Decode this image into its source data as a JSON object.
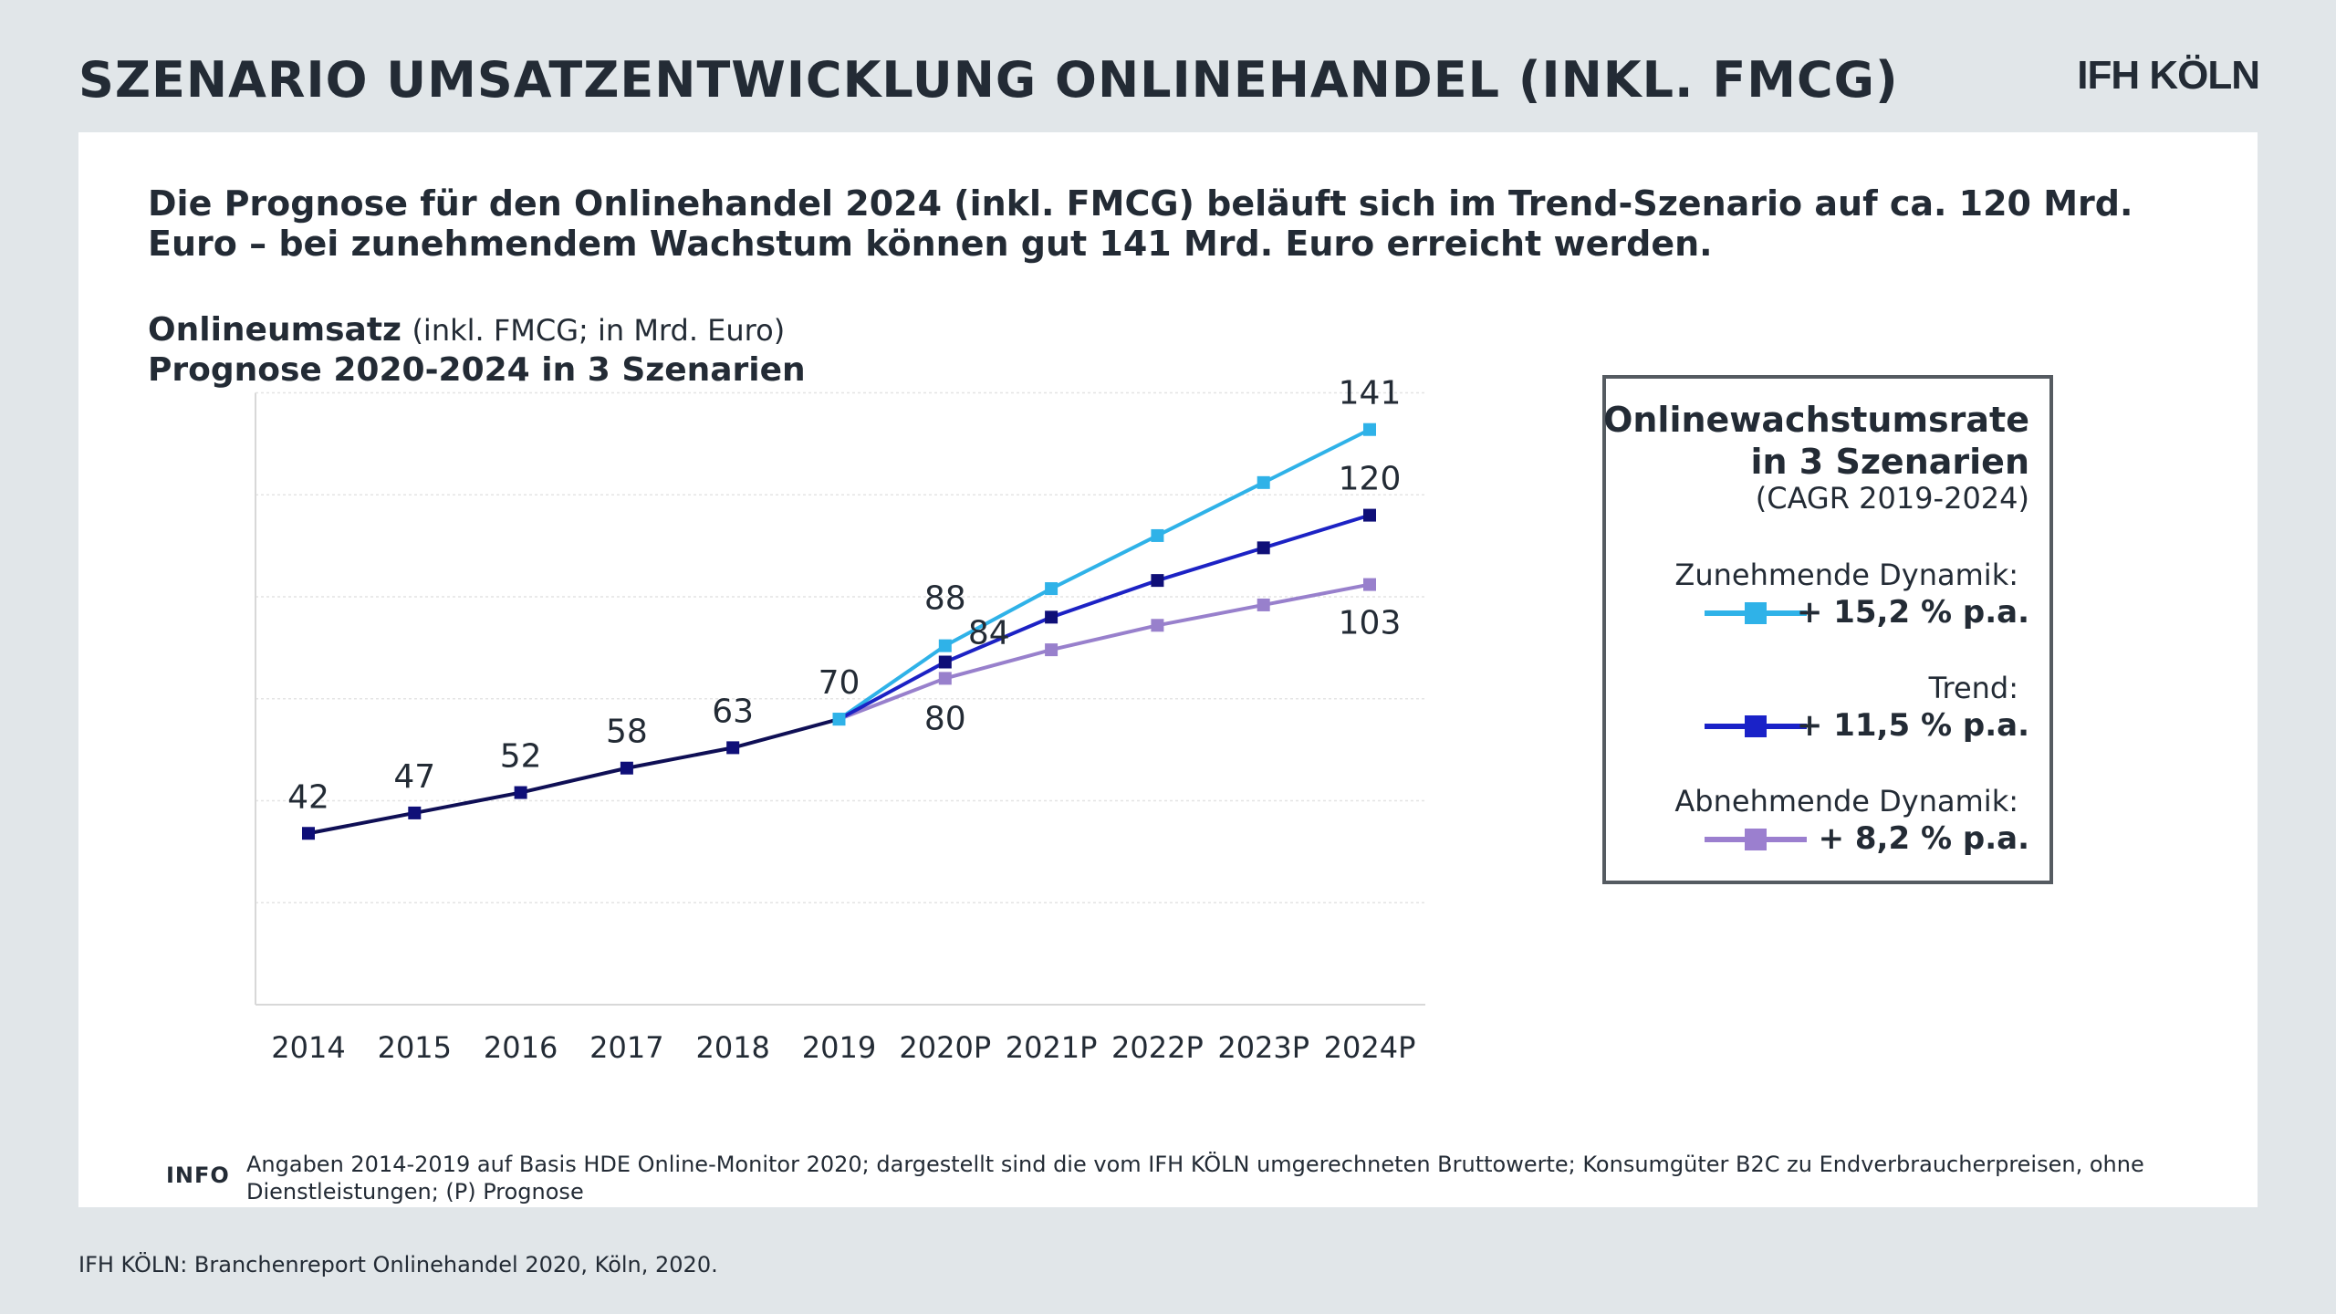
{
  "page": {
    "title": "SZENARIO UMSATZENTWICKLUNG ONLINEHANDEL (INKL. FMCG)",
    "logo": "IFH KÖLN",
    "headline": "Die Prognose für den Onlinehandel 2024 (inkl. FMCG) beläuft sich im Trend-Szenario auf ca. 120 Mrd. Euro – bei zunehmendem Wachstum können gut 141 Mrd. Euro erreicht werden.",
    "chart_heading_bold": "Onlineumsatz",
    "chart_heading_light": "(inkl. FMCG; in Mrd. Euro)",
    "chart_subheading": "Prognose 2020-2024 in 3 Szenarien",
    "info_tag": "INFO",
    "info_text": "Angaben 2014-2019 auf Basis HDE Online-Monitor 2020; dargestellt sind die vom IFH KÖLN umgerechneten Bruttowerte; Konsumgüter B2C zu Endverbraucherpreisen, ohne Dienstleistungen; (P) Prognose",
    "source": "IFH KÖLN: Branchenreport Onlinehandel 2020, Köln, 2020."
  },
  "legend": {
    "title_line1": "Onlinewachstumsrate",
    "title_line2": "in 3 Szenarien",
    "subtitle": "(CAGR 2019-2024)",
    "entries": [
      {
        "label": "Zunehmende Dynamik:",
        "value": "+ 15,2 % p.a.",
        "color": "#2fb2e8"
      },
      {
        "label": "Trend:",
        "value": "+ 11,5 % p.a.",
        "color": "#1a22c8"
      },
      {
        "label": "Abnehmende Dynamik:",
        "value": "+ 8,2 % p.a.",
        "color": "#9b7fcf"
      }
    ]
  },
  "chart_data": {
    "type": "line",
    "categories": [
      "2014",
      "2015",
      "2016",
      "2017",
      "2018",
      "2019",
      "2020P",
      "2021P",
      "2022P",
      "2023P",
      "2024P"
    ],
    "ylim": [
      0,
      150
    ],
    "grid": true,
    "series": [
      {
        "name": "Zunehmende Dynamik",
        "color": "#2fb2e8",
        "values": [
          null,
          null,
          null,
          null,
          null,
          70,
          88,
          102,
          115,
          128,
          141
        ]
      },
      {
        "name": "Trend",
        "color": "#0f0f78",
        "values": [
          42,
          47,
          52,
          58,
          63,
          70,
          84,
          95,
          104,
          112,
          120
        ]
      },
      {
        "name": "Abnehmende Dynamik",
        "color": "#9880cc",
        "values": [
          null,
          null,
          null,
          null,
          null,
          70,
          80,
          87,
          93,
          98,
          103
        ]
      }
    ],
    "data_labels": [
      {
        "category": "2014",
        "series": "Trend",
        "text": "42"
      },
      {
        "category": "2015",
        "series": "Trend",
        "text": "47"
      },
      {
        "category": "2016",
        "series": "Trend",
        "text": "52"
      },
      {
        "category": "2017",
        "series": "Trend",
        "text": "58"
      },
      {
        "category": "2018",
        "series": "Trend",
        "text": "63"
      },
      {
        "category": "2019",
        "series": "Trend",
        "text": "70"
      },
      {
        "category": "2020P",
        "series": "Zunehmende Dynamik",
        "text": "88"
      },
      {
        "category": "2020P",
        "series": "Trend",
        "text": "84"
      },
      {
        "category": "2020P",
        "series": "Abnehmende Dynamik",
        "text": "80"
      },
      {
        "category": "2024P",
        "series": "Zunehmende Dynamik",
        "text": "141"
      },
      {
        "category": "2024P",
        "series": "Trend",
        "text": "120"
      },
      {
        "category": "2024P",
        "series": "Abnehmende Dynamik",
        "text": "103"
      }
    ]
  }
}
